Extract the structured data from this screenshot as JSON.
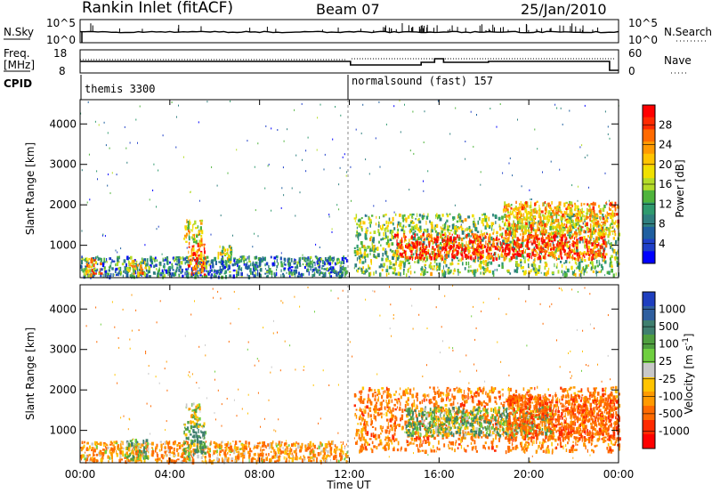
{
  "header": {
    "station": "Rankin Inlet (fitACF)",
    "beam": "Beam 07",
    "date": "25/Jan/2010"
  },
  "noise_panel": {
    "left_label": "N.Sky",
    "left_ticks": [
      "10^5",
      "10^0"
    ],
    "right_label": "N.Search",
    "right_ticks": [
      "10^5",
      "10^0"
    ]
  },
  "freq_panel": {
    "left_label_1": "Freq.",
    "left_label_2": "[MHz]",
    "left_ticks": [
      "18",
      "8"
    ],
    "right_label": "Nave",
    "right_ticks": [
      "60",
      "0"
    ]
  },
  "cpid": {
    "label": "CPID",
    "programs": [
      "themis 3300",
      "normalsound (fast) 157"
    ]
  },
  "power_panel": {
    "ylabel": "Slant Range [km]",
    "yticks": [
      "4000",
      "3000",
      "2000",
      "1000"
    ],
    "colorbar_label": "Power [dB]",
    "colorbar_ticks": [
      "28",
      "24",
      "20",
      "16",
      "12",
      "8",
      "4"
    ],
    "colorbar_colors": [
      "#ff0000",
      "#ff2a00",
      "#ff6a00",
      "#ff9a00",
      "#ffc400",
      "#f0e000",
      "#b4dc28",
      "#4fb43c",
      "#2f9a6e",
      "#2f7f7f",
      "#1f5fa0",
      "#1f3fc8",
      "#0000ff"
    ]
  },
  "velocity_panel": {
    "ylabel": "Slant Range [km]",
    "yticks": [
      "4000",
      "3000",
      "2000",
      "1000"
    ],
    "colorbar_label": "Velocity [m s^-1]",
    "colorbar_ticks": [
      "1000",
      "500",
      "100",
      "25",
      "-25",
      "-100",
      "-500",
      "-1000"
    ],
    "colorbar_colors": [
      "#1f3fbf",
      "#2f5f9f",
      "#3f7f6f",
      "#4f9f3f",
      "#6fcf3f",
      "#c8c8c8",
      "#ffc400",
      "#ff9a00",
      "#ff6a00",
      "#ff2a00",
      "#ff0000"
    ]
  },
  "xaxis": {
    "label": "Time UT",
    "ticks": [
      "00:00",
      "04:00",
      "08:00",
      "12:00",
      "16:00",
      "20:00",
      "00:00"
    ]
  },
  "chart_data": [
    {
      "type": "heatmap",
      "title": "Power [dB]",
      "xlabel": "Time UT",
      "ylabel": "Slant Range [km]",
      "x_ticks": [
        "00:00",
        "04:00",
        "08:00",
        "12:00",
        "16:00",
        "20:00",
        "00:00"
      ],
      "xlim_hours": [
        0,
        24
      ],
      "ylim": [
        200,
        4600
      ],
      "colorbar_range": [
        0,
        30
      ],
      "grid": false,
      "regions": [
        {
          "t0": 0.0,
          "t1": 11.9,
          "r0": 250,
          "r1": 750,
          "value": 8
        },
        {
          "t0": 0.2,
          "t1": 0.9,
          "r0": 300,
          "r1": 700,
          "value": 22
        },
        {
          "t0": 2.1,
          "t1": 2.9,
          "r0": 300,
          "r1": 650,
          "value": 20
        },
        {
          "t0": 4.8,
          "t1": 5.6,
          "r0": 300,
          "r1": 1100,
          "value": 24
        },
        {
          "t0": 4.6,
          "t1": 5.4,
          "r0": 1100,
          "r1": 1650,
          "value": 18
        },
        {
          "t0": 6.1,
          "t1": 6.7,
          "r0": 600,
          "r1": 1100,
          "value": 16
        },
        {
          "t0": 12.2,
          "t1": 24.0,
          "r0": 300,
          "r1": 1800,
          "value": 14
        },
        {
          "t0": 14.0,
          "t1": 23.4,
          "r0": 700,
          "r1": 1300,
          "value": 27
        },
        {
          "t0": 18.8,
          "t1": 24.0,
          "r0": 1300,
          "r1": 2100,
          "value": 20
        }
      ]
    },
    {
      "type": "heatmap",
      "title": "Velocity [m s^-1]",
      "xlabel": "Time UT",
      "ylabel": "Slant Range [km]",
      "x_ticks": [
        "00:00",
        "04:00",
        "08:00",
        "12:00",
        "16:00",
        "20:00",
        "00:00"
      ],
      "xlim_hours": [
        0,
        24
      ],
      "ylim": [
        200,
        4600
      ],
      "colorbar_range": [
        -1000,
        1000
      ],
      "grid": false,
      "regions": [
        {
          "t0": 0.0,
          "t1": 11.9,
          "r0": 250,
          "r1": 750,
          "value": -200
        },
        {
          "t0": 2.0,
          "t1": 3.0,
          "r0": 300,
          "r1": 800,
          "value": 100
        },
        {
          "t0": 4.6,
          "t1": 5.6,
          "r0": 400,
          "r1": 1200,
          "value": 200
        },
        {
          "t0": 4.7,
          "t1": 5.3,
          "r0": 1200,
          "r1": 1700,
          "value": 0
        },
        {
          "t0": 12.2,
          "t1": 24.0,
          "r0": 500,
          "r1": 2100,
          "value": -300
        },
        {
          "t0": 14.5,
          "t1": 21.0,
          "r0": 900,
          "r1": 1600,
          "value": 150
        },
        {
          "t0": 19.0,
          "t1": 24.0,
          "r0": 800,
          "r1": 1900,
          "value": -400
        }
      ]
    }
  ]
}
